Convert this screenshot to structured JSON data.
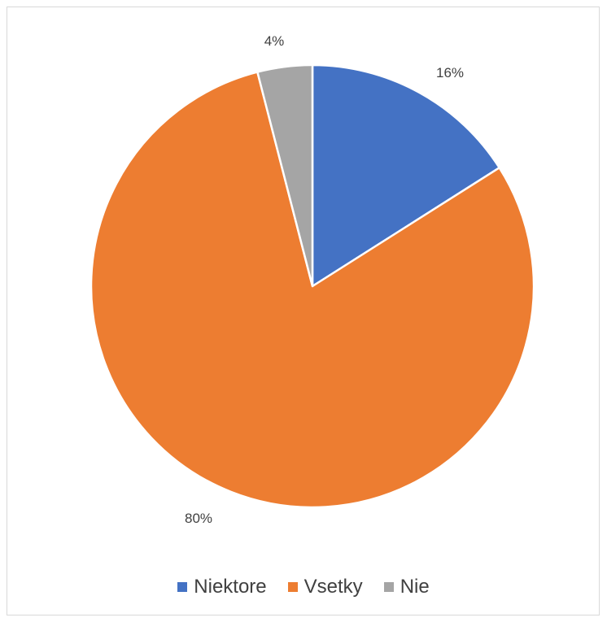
{
  "chart_data": {
    "type": "pie",
    "categories": [
      "Niektore",
      "Vsetky",
      "Nie"
    ],
    "values": [
      16,
      80,
      4
    ],
    "data_labels": [
      "16%",
      "80%",
      "4%"
    ],
    "colors": [
      "#4472C4",
      "#ED7D31",
      "#A5A5A5"
    ],
    "start_angle_deg": 0,
    "direction": "clockwise",
    "legend_position": "bottom",
    "title": ""
  },
  "legend": {
    "items": [
      {
        "label": "Niektore",
        "color": "#4472C4"
      },
      {
        "label": "Vsetky",
        "color": "#ED7D31"
      },
      {
        "label": "Nie",
        "color": "#A5A5A5"
      }
    ]
  }
}
